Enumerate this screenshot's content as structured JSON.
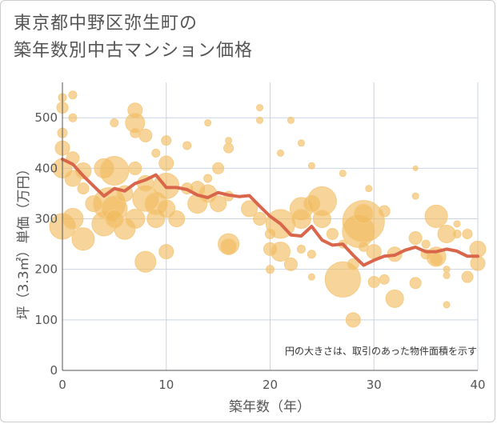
{
  "title_line1": "東京都中野区弥生町の",
  "title_line2": "築年数別中古マンション価格",
  "chart_data": {
    "type": "scatter",
    "title": "東京都中野区弥生町の築年数別中古マンション価格",
    "xlabel": "築年数（年）",
    "ylabel": "坪（3.3㎡）単価（万円）",
    "xlim": [
      0,
      40
    ],
    "ylim": [
      0,
      570
    ],
    "xticks": [
      0,
      10,
      20,
      30,
      40
    ],
    "yticks": [
      0,
      100,
      200,
      300,
      400,
      500
    ],
    "grid": true,
    "note": "円の大きさは、取引のあった物件面積を示す",
    "colors": {
      "bubble": "#f0b95c",
      "line": "#d9664a"
    },
    "bubbles": [
      {
        "x": 0.0,
        "y": 540,
        "r": 5
      },
      {
        "x": 0.0,
        "y": 520,
        "r": 7
      },
      {
        "x": 0.0,
        "y": 470,
        "r": 6
      },
      {
        "x": 0.0,
        "y": 440,
        "r": 9
      },
      {
        "x": 0.0,
        "y": 400,
        "r": 12
      },
      {
        "x": 0.0,
        "y": 285,
        "r": 16
      },
      {
        "x": 1.0,
        "y": 545,
        "r": 5
      },
      {
        "x": 1.0,
        "y": 500,
        "r": 5
      },
      {
        "x": 1.0,
        "y": 420,
        "r": 8
      },
      {
        "x": 1.0,
        "y": 380,
        "r": 10
      },
      {
        "x": 1.0,
        "y": 300,
        "r": 13
      },
      {
        "x": 2.0,
        "y": 395,
        "r": 10
      },
      {
        "x": 2.0,
        "y": 360,
        "r": 7
      },
      {
        "x": 2.0,
        "y": 260,
        "r": 14
      },
      {
        "x": 3.0,
        "y": 330,
        "r": 10
      },
      {
        "x": 4.0,
        "y": 400,
        "r": 12
      },
      {
        "x": 4.0,
        "y": 290,
        "r": 15
      },
      {
        "x": 4.5,
        "y": 330,
        "r": 20
      },
      {
        "x": 5.0,
        "y": 490,
        "r": 5
      },
      {
        "x": 5.0,
        "y": 395,
        "r": 18
      },
      {
        "x": 5.0,
        "y": 320,
        "r": 16
      },
      {
        "x": 5.0,
        "y": 300,
        "r": 11
      },
      {
        "x": 6.0,
        "y": 280,
        "r": 13
      },
      {
        "x": 6.0,
        "y": 350,
        "r": 10
      },
      {
        "x": 7.0,
        "y": 515,
        "r": 9
      },
      {
        "x": 7.0,
        "y": 490,
        "r": 12
      },
      {
        "x": 7.0,
        "y": 470,
        "r": 6
      },
      {
        "x": 7.0,
        "y": 400,
        "r": 8
      },
      {
        "x": 7.0,
        "y": 300,
        "r": 12
      },
      {
        "x": 8.0,
        "y": 465,
        "r": 8
      },
      {
        "x": 8.0,
        "y": 340,
        "r": 16
      },
      {
        "x": 8.0,
        "y": 370,
        "r": 10
      },
      {
        "x": 8.0,
        "y": 215,
        "r": 13
      },
      {
        "x": 9.0,
        "y": 300,
        "r": 11
      },
      {
        "x": 9.0,
        "y": 330,
        "r": 14
      },
      {
        "x": 9.0,
        "y": 430,
        "r": 5
      },
      {
        "x": 10.0,
        "y": 455,
        "r": 6
      },
      {
        "x": 10.0,
        "y": 410,
        "r": 9
      },
      {
        "x": 10.0,
        "y": 365,
        "r": 16
      },
      {
        "x": 10.0,
        "y": 320,
        "r": 11
      },
      {
        "x": 10.0,
        "y": 235,
        "r": 9
      },
      {
        "x": 11.0,
        "y": 300,
        "r": 10
      },
      {
        "x": 12.0,
        "y": 445,
        "r": 5
      },
      {
        "x": 12.0,
        "y": 360,
        "r": 7
      },
      {
        "x": 13.0,
        "y": 330,
        "r": 12
      },
      {
        "x": 13.0,
        "y": 360,
        "r": 9
      },
      {
        "x": 14.0,
        "y": 490,
        "r": 4
      },
      {
        "x": 14.0,
        "y": 380,
        "r": 5
      },
      {
        "x": 14.0,
        "y": 350,
        "r": 11
      },
      {
        "x": 15.0,
        "y": 400,
        "r": 7
      },
      {
        "x": 15.0,
        "y": 330,
        "r": 10
      },
      {
        "x": 16.0,
        "y": 455,
        "r": 4
      },
      {
        "x": 16.0,
        "y": 440,
        "r": 6
      },
      {
        "x": 16.0,
        "y": 345,
        "r": 6
      },
      {
        "x": 16.0,
        "y": 250,
        "r": 13
      },
      {
        "x": 16.0,
        "y": 245,
        "r": 10
      },
      {
        "x": 18.0,
        "y": 320,
        "r": 10
      },
      {
        "x": 19.0,
        "y": 520,
        "r": 4
      },
      {
        "x": 19.0,
        "y": 495,
        "r": 4
      },
      {
        "x": 19.0,
        "y": 300,
        "r": 8
      },
      {
        "x": 20.0,
        "y": 270,
        "r": 6
      },
      {
        "x": 20.0,
        "y": 240,
        "r": 8
      },
      {
        "x": 20.0,
        "y": 200,
        "r": 5
      },
      {
        "x": 21.0,
        "y": 430,
        "r": 4
      },
      {
        "x": 21.0,
        "y": 290,
        "r": 18
      },
      {
        "x": 21.0,
        "y": 235,
        "r": 12
      },
      {
        "x": 22.0,
        "y": 495,
        "r": 4
      },
      {
        "x": 22.0,
        "y": 210,
        "r": 8
      },
      {
        "x": 23.0,
        "y": 450,
        "r": 4
      },
      {
        "x": 23.0,
        "y": 320,
        "r": 14
      },
      {
        "x": 23.0,
        "y": 300,
        "r": 12
      },
      {
        "x": 23.0,
        "y": 240,
        "r": 5
      },
      {
        "x": 24.0,
        "y": 405,
        "r": 4
      },
      {
        "x": 24.0,
        "y": 330,
        "r": 10
      },
      {
        "x": 24.0,
        "y": 230,
        "r": 5
      },
      {
        "x": 24.0,
        "y": 185,
        "r": 4
      },
      {
        "x": 25.0,
        "y": 335,
        "r": 18
      },
      {
        "x": 25.0,
        "y": 300,
        "r": 11
      },
      {
        "x": 26.0,
        "y": 270,
        "r": 7
      },
      {
        "x": 27.0,
        "y": 390,
        "r": 4
      },
      {
        "x": 27.0,
        "y": 250,
        "r": 5
      },
      {
        "x": 27.0,
        "y": 180,
        "r": 22
      },
      {
        "x": 28.0,
        "y": 100,
        "r": 9
      },
      {
        "x": 28.0,
        "y": 210,
        "r": 7
      },
      {
        "x": 28.5,
        "y": 275,
        "r": 20
      },
      {
        "x": 29.0,
        "y": 295,
        "r": 26
      },
      {
        "x": 29.0,
        "y": 310,
        "r": 12
      },
      {
        "x": 29.0,
        "y": 245,
        "r": 6
      },
      {
        "x": 29.5,
        "y": 360,
        "r": 4
      },
      {
        "x": 30.0,
        "y": 175,
        "r": 7
      },
      {
        "x": 30.0,
        "y": 235,
        "r": 9
      },
      {
        "x": 31.0,
        "y": 315,
        "r": 7
      },
      {
        "x": 31.0,
        "y": 180,
        "r": 6
      },
      {
        "x": 32.0,
        "y": 142,
        "r": 11
      },
      {
        "x": 32.0,
        "y": 230,
        "r": 9
      },
      {
        "x": 34.0,
        "y": 400,
        "r": 3
      },
      {
        "x": 34.0,
        "y": 345,
        "r": 4
      },
      {
        "x": 34.0,
        "y": 262,
        "r": 8
      },
      {
        "x": 34.0,
        "y": 173,
        "r": 7
      },
      {
        "x": 35.0,
        "y": 230,
        "r": 6
      },
      {
        "x": 35.0,
        "y": 250,
        "r": 5
      },
      {
        "x": 36.0,
        "y": 305,
        "r": 14
      },
      {
        "x": 36.0,
        "y": 225,
        "r": 12
      },
      {
        "x": 36.0,
        "y": 220,
        "r": 8
      },
      {
        "x": 37.0,
        "y": 270,
        "r": 11
      },
      {
        "x": 37.0,
        "y": 200,
        "r": 4
      },
      {
        "x": 37.0,
        "y": 188,
        "r": 4
      },
      {
        "x": 37.0,
        "y": 130,
        "r": 4
      },
      {
        "x": 38.0,
        "y": 290,
        "r": 4
      },
      {
        "x": 38.0,
        "y": 270,
        "r": 5
      },
      {
        "x": 39.0,
        "y": 270,
        "r": 6
      },
      {
        "x": 39.0,
        "y": 185,
        "r": 7
      },
      {
        "x": 40.0,
        "y": 240,
        "r": 10
      },
      {
        "x": 40.0,
        "y": 212,
        "r": 9
      }
    ],
    "trend": {
      "name": "",
      "x": [
        0,
        1,
        2,
        3,
        4,
        5,
        6,
        7,
        8,
        9,
        10,
        11,
        12,
        13,
        14,
        15,
        16,
        17,
        18,
        19,
        20,
        21,
        22,
        23,
        24,
        25,
        26,
        27,
        28,
        29,
        30,
        31,
        32,
        33,
        34,
        35,
        36,
        37,
        38,
        39,
        40
      ],
      "y": [
        418,
        408,
        385,
        365,
        345,
        360,
        355,
        370,
        377,
        387,
        362,
        362,
        358,
        347,
        342,
        352,
        347,
        344,
        346,
        325,
        305,
        290,
        268,
        266,
        285,
        258,
        248,
        250,
        228,
        208,
        218,
        226,
        228,
        238,
        244,
        235,
        235,
        240,
        236,
        226,
        226
      ]
    }
  }
}
